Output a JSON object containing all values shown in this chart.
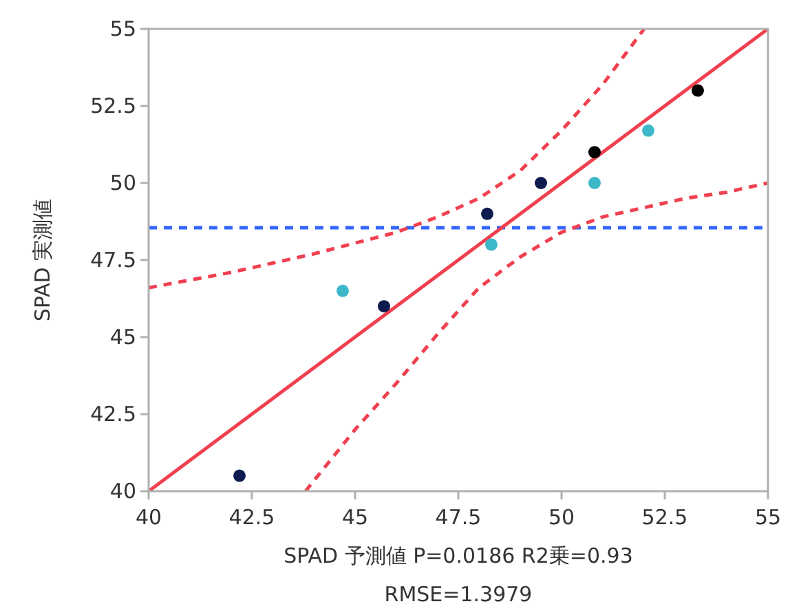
{
  "chart_data": {
    "type": "scatter",
    "xlabel": "SPAD 予測値 P=0.0186 R2乗=0.93",
    "ylabel": "SPAD 実測値",
    "annotations": [
      "RMSE=1.3979"
    ],
    "xlim": [
      40,
      55
    ],
    "ylim": [
      40,
      55
    ],
    "xticks": [
      40,
      42.5,
      45,
      47.5,
      50,
      52.5,
      55
    ],
    "yticks": [
      40,
      42.5,
      45,
      47.5,
      50,
      52.5,
      55
    ],
    "grid": false,
    "ref_lines": [
      {
        "axis": "y",
        "value": 48.55,
        "color": "#3366ff",
        "line_style": "dashed"
      }
    ],
    "series": [
      {
        "type": "line",
        "color": "#f0404f",
        "marker": "none",
        "line_style": "solid",
        "x": [
          40,
          55
        ],
        "values": [
          40,
          55
        ]
      },
      {
        "type": "line",
        "color": "#f0404f",
        "marker": "none",
        "line_style": "dashed",
        "x": [
          40,
          42,
          44,
          46,
          47,
          48,
          49,
          50,
          51,
          52
        ],
        "values": [
          46.6,
          47.1,
          47.7,
          48.4,
          48.9,
          49.5,
          50.4,
          51.7,
          53.2,
          55.0
        ]
      },
      {
        "type": "line",
        "color": "#f0404f",
        "marker": "none",
        "line_style": "dashed",
        "x": [
          43.8,
          45,
          46,
          47,
          48,
          49,
          50,
          51,
          52,
          53,
          54,
          55
        ],
        "values": [
          40.0,
          42.0,
          43.5,
          45.1,
          46.6,
          47.6,
          48.4,
          48.9,
          49.2,
          49.5,
          49.7,
          50.0
        ]
      },
      {
        "color": "#0d1b4f",
        "marker": "circle",
        "x": [
          42.2,
          45.7,
          48.2,
          49.5
        ],
        "values": [
          40.5,
          46.0,
          49.0,
          50.0
        ]
      },
      {
        "color": "#3cb8c8",
        "marker": "circle",
        "x": [
          44.7,
          48.3,
          50.8,
          52.1
        ],
        "values": [
          46.5,
          48.0,
          50.0,
          51.7
        ]
      },
      {
        "color": "#000000",
        "marker": "circle",
        "x": [
          50.8,
          53.3
        ],
        "values": [
          51.0,
          53.0
        ]
      }
    ]
  }
}
